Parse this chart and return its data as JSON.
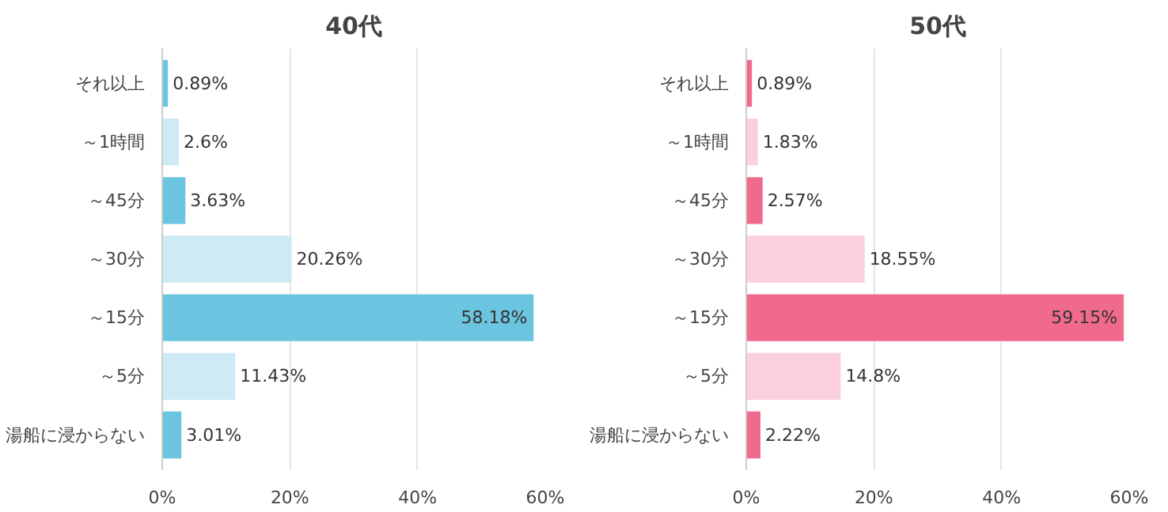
{
  "chart_data": [
    {
      "type": "bar",
      "title": "40代",
      "orientation": "horizontal",
      "categories": [
        "それ以上",
        "～1時間",
        "～45分",
        "～30分",
        "～15分",
        "～5分",
        "湯船に浸からない"
      ],
      "values": [
        0.89,
        2.6,
        3.63,
        20.26,
        58.18,
        11.43,
        3.01
      ],
      "colors": [
        "#6cc5e0",
        "#cdeaf5",
        "#6cc5e0",
        "#cdeaf5",
        "#6cc5e0",
        "#cdeaf5",
        "#6cc5e0"
      ],
      "value_labels": [
        "0.89%",
        "2.6%",
        "3.63%",
        "20.26%",
        "58.18%",
        "11.43%",
        "3.01%"
      ],
      "xlim": [
        0,
        60
      ],
      "xticks": [
        {
          "value": 0,
          "label": "0%"
        },
        {
          "value": 20,
          "label": "20%"
        },
        {
          "value": 40,
          "label": "40%"
        },
        {
          "value": 60,
          "label": "60%"
        }
      ],
      "grid": "x"
    },
    {
      "type": "bar",
      "title": "50代",
      "orientation": "horizontal",
      "categories": [
        "それ以上",
        "～1時間",
        "～45分",
        "～30分",
        "～15分",
        "～5分",
        "湯船に浸からない"
      ],
      "values": [
        0.89,
        1.83,
        2.57,
        18.55,
        59.15,
        14.8,
        2.22
      ],
      "colors": [
        "#f06a8d",
        "#fbd0dc",
        "#f06a8d",
        "#fbd0dc",
        "#f06a8d",
        "#fbd0dc",
        "#f06a8d"
      ],
      "value_labels": [
        "0.89%",
        "1.83%",
        "2.57%",
        "18.55%",
        "59.15%",
        "14.8%",
        "2.22%"
      ],
      "xlim": [
        0,
        60
      ],
      "xticks": [
        {
          "value": 0,
          "label": "0%"
        },
        {
          "value": 20,
          "label": "20%"
        },
        {
          "value": 40,
          "label": "40%"
        },
        {
          "value": 60,
          "label": "60%"
        }
      ],
      "grid": "x"
    }
  ]
}
